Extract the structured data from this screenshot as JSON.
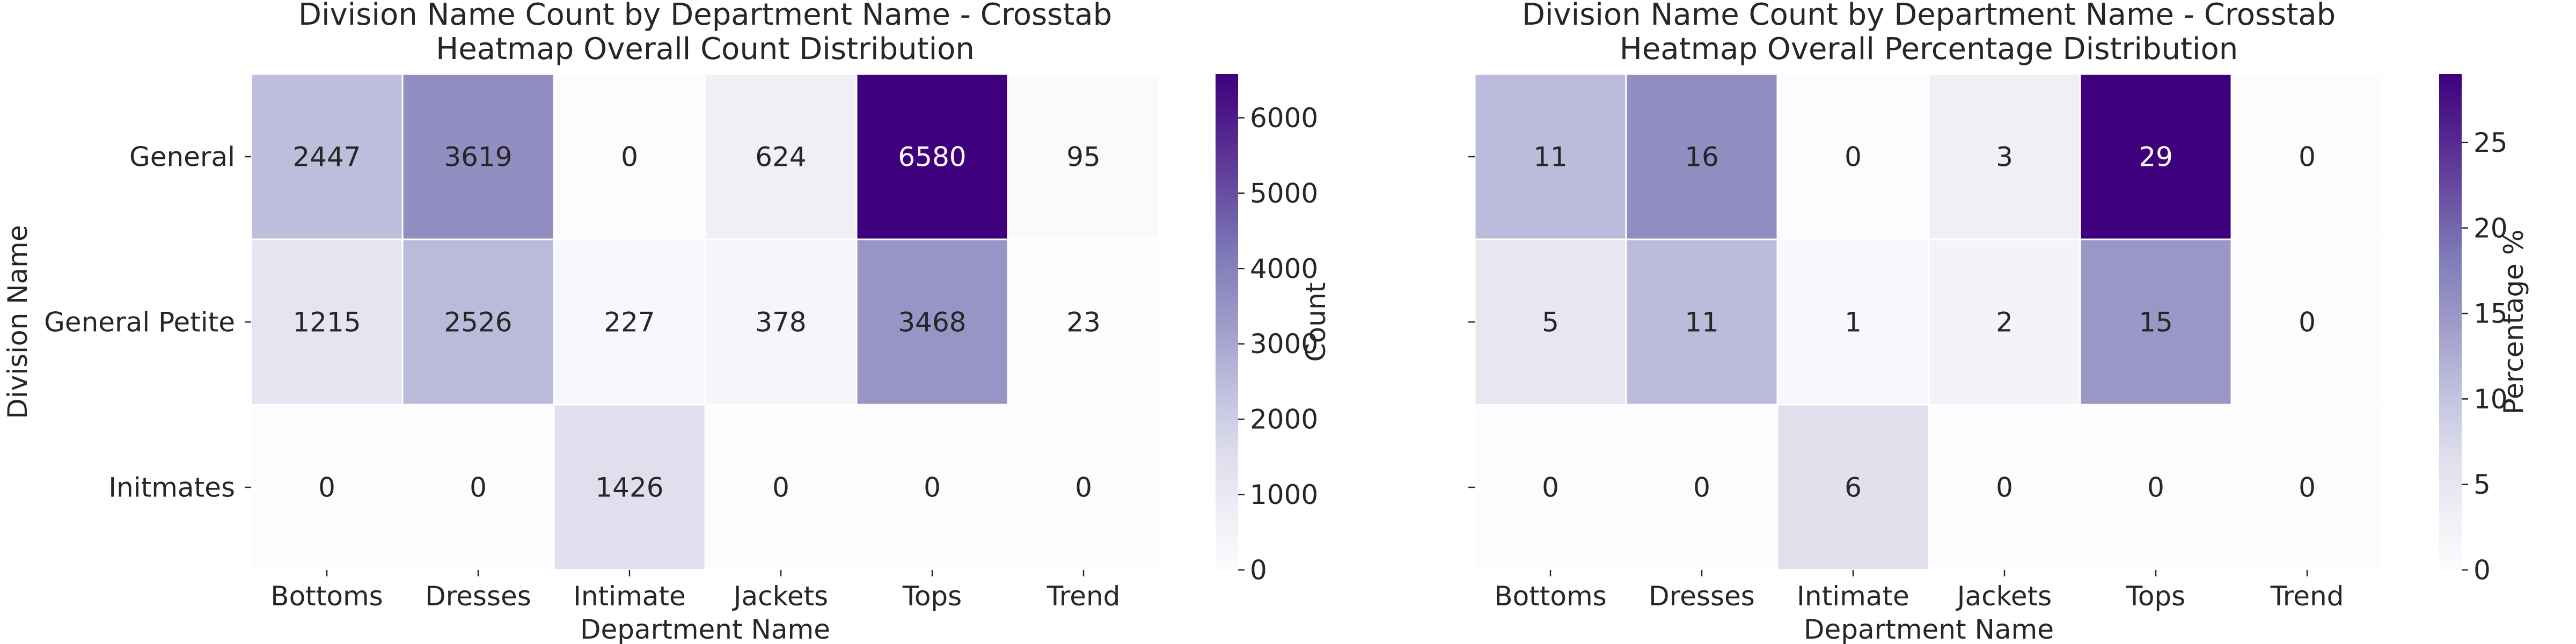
{
  "chart_data": [
    {
      "type": "heatmap",
      "title": "Division Name Count by Department Name - Crosstab\nHeatmap Overall Count Distribution",
      "xlabel": "Department Name",
      "ylabel": "Division Name",
      "x_categories": [
        "Bottoms",
        "Dresses",
        "Intimate",
        "Jackets",
        "Tops",
        "Trend"
      ],
      "y_categories": [
        "General",
        "General Petite",
        "Initmates"
      ],
      "values": [
        [
          2447,
          3619,
          0,
          624,
          6580,
          95
        ],
        [
          1215,
          2526,
          227,
          378,
          3468,
          23
        ],
        [
          0,
          0,
          1426,
          0,
          0,
          0
        ]
      ],
      "colorbar": {
        "label": "Count",
        "range": [
          0,
          6580
        ],
        "ticks": [
          0,
          1000,
          2000,
          3000,
          4000,
          5000,
          6000
        ]
      },
      "colormap": "Purples"
    },
    {
      "type": "heatmap",
      "title": "Division Name Count by Department Name - Crosstab\nHeatmap Overall Percentage Distribution",
      "xlabel": "Department Name",
      "ylabel": "",
      "x_categories": [
        "Bottoms",
        "Dresses",
        "Intimate",
        "Jackets",
        "Tops",
        "Trend"
      ],
      "y_categories": [
        "General",
        "General Petite",
        "Initmates"
      ],
      "values": [
        [
          11,
          16,
          0,
          3,
          29,
          0
        ],
        [
          5,
          11,
          1,
          2,
          15,
          0
        ],
        [
          0,
          0,
          6,
          0,
          0,
          0
        ]
      ],
      "colorbar": {
        "label": "Percentage %",
        "range": [
          0,
          29
        ],
        "ticks": [
          0,
          5,
          10,
          15,
          20,
          25
        ]
      },
      "colormap": "Purples"
    }
  ]
}
